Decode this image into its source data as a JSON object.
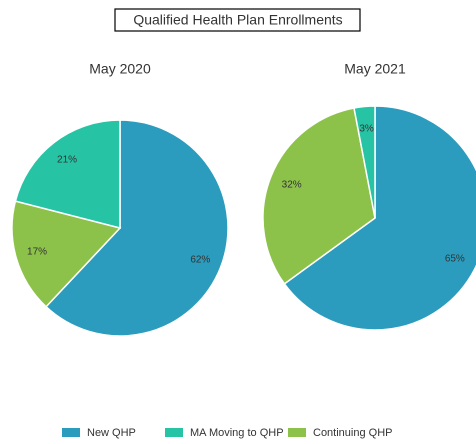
{
  "title": "Qualified Health Plan Enrollments",
  "chart_data": [
    {
      "type": "pie",
      "title": "May 2020",
      "categories": [
        "New QHP",
        "Continuing QHP",
        "MA Moving to QHP"
      ],
      "values": [
        62,
        17,
        21
      ],
      "value_labels": [
        "62%",
        "17%",
        "21%"
      ],
      "colors": [
        "#2b9cbd",
        "#8dc24a",
        "#26c4a5"
      ]
    },
    {
      "type": "pie",
      "title": "May 2021",
      "categories": [
        "New QHP",
        "Continuing QHP",
        "MA Moving to QHP"
      ],
      "values": [
        65,
        32,
        3
      ],
      "value_labels": [
        "65%",
        "32%",
        "3%"
      ],
      "colors": [
        "#2b9cbd",
        "#8dc24a",
        "#26c4a5"
      ]
    }
  ]
}
